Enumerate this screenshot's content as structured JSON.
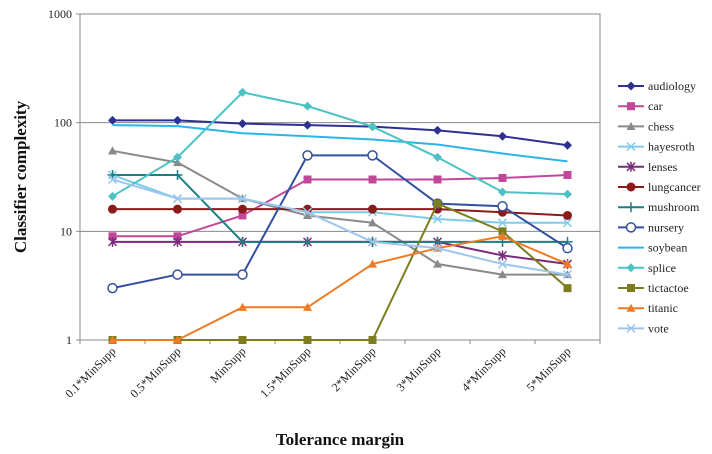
{
  "chart_data": {
    "type": "line",
    "title": "",
    "xlabel": "Tolerance margin",
    "ylabel": "Classifier complexity",
    "yscale": "log",
    "ylim": [
      1,
      1000
    ],
    "yticks": [
      "1",
      "10",
      "100",
      "1000"
    ],
    "grid": "horizontal",
    "legend_position": "right",
    "categories": [
      "0.1*MinSupp",
      "0.5*MinSupp",
      "MinSupp",
      "1.5*MinSupp",
      "2*MinSupp",
      "3*MinSupp",
      "4*MinSupp",
      "5*MinSupp"
    ],
    "series": [
      {
        "name": "audiology",
        "color": "#2e3192",
        "marker": "diamond",
        "values": [
          105,
          105,
          98,
          95,
          92,
          85,
          75,
          62
        ]
      },
      {
        "name": "car",
        "color": "#c2479a",
        "marker": "square",
        "values": [
          9,
          9,
          14,
          30,
          30,
          30,
          31,
          33
        ]
      },
      {
        "name": "chess",
        "color": "#8a8a8a",
        "marker": "triangle",
        "values": [
          55,
          43,
          20,
          14,
          12,
          5,
          4,
          4
        ]
      },
      {
        "name": "hayesroth",
        "color": "#7ecbe8",
        "marker": "x",
        "values": [
          33,
          20,
          20,
          15,
          15,
          13,
          12,
          12
        ]
      },
      {
        "name": "lenses",
        "color": "#7b2a7b",
        "marker": "asterisk",
        "values": [
          8,
          8,
          8,
          8,
          8,
          8,
          6,
          5
        ]
      },
      {
        "name": "lungcancer",
        "color": "#8b1a1a",
        "marker": "circle-filled",
        "values": [
          16,
          16,
          16,
          16,
          16,
          16,
          15,
          14
        ]
      },
      {
        "name": "mushroom",
        "color": "#1b7f7f",
        "marker": "plus",
        "values": [
          33,
          33,
          8,
          8,
          8,
          8,
          8,
          8
        ]
      },
      {
        "name": "nursery",
        "color": "#3350a0",
        "marker": "circle-open",
        "values": [
          3,
          4,
          4,
          50,
          50,
          18,
          17,
          7
        ]
      },
      {
        "name": "soybean",
        "color": "#29b5e8",
        "marker": "none",
        "values": [
          95,
          93,
          80,
          75,
          70,
          63,
          52,
          44
        ]
      },
      {
        "name": "splice",
        "color": "#4cc2c4",
        "marker": "diamond",
        "values": [
          21,
          48,
          190,
          142,
          92,
          48,
          23,
          22
        ]
      },
      {
        "name": "tictactoe",
        "color": "#7d7d1f",
        "marker": "square",
        "values": [
          1,
          1,
          1,
          1,
          1,
          18,
          10,
          3
        ]
      },
      {
        "name": "titanic",
        "color": "#f07a22",
        "marker": "triangle",
        "values": [
          1,
          1,
          2,
          2,
          5,
          7,
          9,
          5
        ]
      },
      {
        "name": "vote",
        "color": "#9cc6ec",
        "marker": "x",
        "values": [
          30,
          20,
          20,
          15,
          8,
          7,
          5,
          4
        ]
      }
    ]
  }
}
